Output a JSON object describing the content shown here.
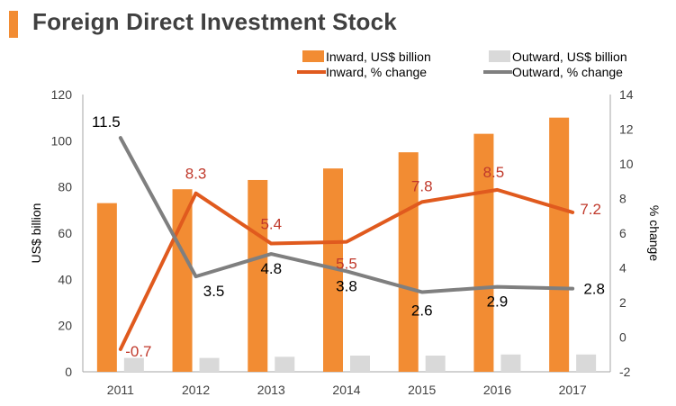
{
  "title": "Foreign Direct Investment Stock",
  "colors": {
    "inward_bar": "#f28c33",
    "outward_bar": "#d9d9d9",
    "inward_line": "#e05a1e",
    "outward_line": "#7f7f7f",
    "inward_label": "#c0392b",
    "outward_label": "#000000",
    "accent": "#f28c33"
  },
  "chart_data": {
    "type": "bar+line",
    "title": "Foreign Direct Investment Stock",
    "categories": [
      "2011",
      "2012",
      "2013",
      "2014",
      "2015",
      "2016",
      "2017"
    ],
    "series": [
      {
        "name": "Inward, US$ billion",
        "kind": "bar",
        "axis": "left",
        "values": [
          73,
          79,
          83,
          88,
          95,
          103,
          110
        ]
      },
      {
        "name": "Outward, US$ billion",
        "kind": "bar",
        "axis": "left",
        "values": [
          6,
          6,
          6.5,
          7,
          7,
          7.5,
          7.5
        ]
      },
      {
        "name": "Inward, % change",
        "kind": "line",
        "axis": "right",
        "values": [
          -0.7,
          8.3,
          5.4,
          5.5,
          7.8,
          8.5,
          7.2
        ],
        "labels": [
          "-0.7",
          "8.3",
          "5.4",
          "5.5",
          "7.8",
          "8.5",
          "7.2"
        ]
      },
      {
        "name": "Outward, % change",
        "kind": "line",
        "axis": "right",
        "values": [
          11.5,
          3.5,
          4.8,
          3.8,
          2.6,
          2.9,
          2.8
        ],
        "labels": [
          "11.5",
          "3.5",
          "4.8",
          "3.8",
          "2.6",
          "2.9",
          "2.8"
        ]
      }
    ],
    "ylabel_left": "US$ billion",
    "ylabel_right": "% change",
    "ylim_left": [
      0,
      120
    ],
    "yticks_left": [
      "0",
      "20",
      "40",
      "60",
      "80",
      "100",
      "120"
    ],
    "ylim_right": [
      -2,
      14
    ],
    "yticks_right": [
      "-2",
      "0",
      "2",
      "4",
      "6",
      "8",
      "10",
      "12",
      "14"
    ],
    "legend": {
      "position": "top-right",
      "entries": [
        "Inward, US$ billion",
        "Outward, US$ billion",
        "Inward, % change",
        "Outward, % change"
      ]
    },
    "grid": false
  }
}
